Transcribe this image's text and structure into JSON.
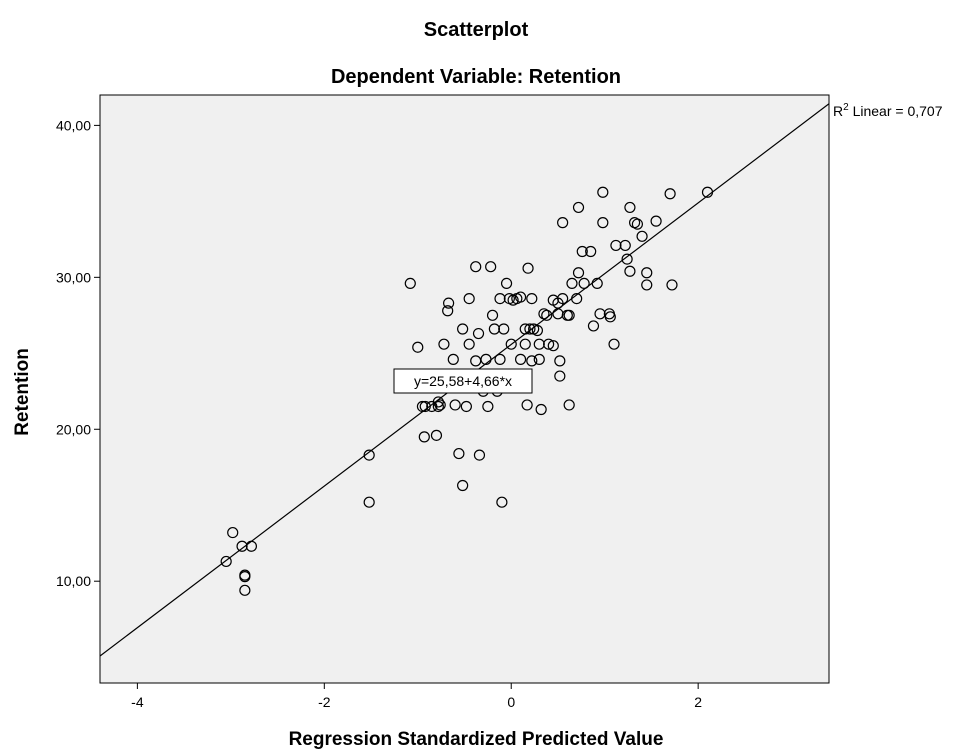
{
  "chart_data": {
    "type": "scatter",
    "title": "Scatterplot",
    "subtitle": "Dependent Variable: Retention",
    "xlabel": "Regression Standardized Predicted Value",
    "ylabel": "Retention",
    "xlim": [
      -4.4,
      3.4
    ],
    "ylim": [
      3.3,
      42.0
    ],
    "x_ticks": [
      -4,
      -2,
      0,
      2
    ],
    "x_tick_labels": [
      "-4",
      "-2",
      "0",
      "2"
    ],
    "y_ticks": [
      10,
      20,
      30,
      40
    ],
    "y_tick_labels": [
      "10,00",
      "20,00",
      "30,00",
      "40,00"
    ],
    "grid": false,
    "plot_background": "#f0f0f0",
    "marker_color": "#000000",
    "fit_line": {
      "intercept": 25.58,
      "slope": 4.66,
      "color": "#000000"
    },
    "equation_label": "y=25,58+4,66*x",
    "r2_label_prefix": "R",
    "r2_label_sup": "2",
    "r2_label_suffix": " Linear = 0,707",
    "points": [
      [
        -3.05,
        11.3
      ],
      [
        -2.98,
        13.2
      ],
      [
        -2.88,
        12.3
      ],
      [
        -2.78,
        12.3
      ],
      [
        -2.85,
        10.3
      ],
      [
        -2.85,
        10.4
      ],
      [
        -2.85,
        9.4
      ],
      [
        -1.52,
        18.3
      ],
      [
        -1.52,
        15.2
      ],
      [
        -1.08,
        29.6
      ],
      [
        -1.0,
        25.4
      ],
      [
        -0.95,
        21.5
      ],
      [
        -0.92,
        21.5
      ],
      [
        -0.93,
        19.5
      ],
      [
        -0.85,
        21.5
      ],
      [
        -0.78,
        21.5
      ],
      [
        -0.78,
        21.8
      ],
      [
        -0.76,
        21.6
      ],
      [
        -0.8,
        19.6
      ],
      [
        -0.72,
        25.6
      ],
      [
        -0.68,
        27.8
      ],
      [
        -0.67,
        28.3
      ],
      [
        -0.62,
        24.6
      ],
      [
        -0.6,
        21.6
      ],
      [
        -0.56,
        18.4
      ],
      [
        -0.52,
        16.3
      ],
      [
        -0.52,
        26.6
      ],
      [
        -0.48,
        21.5
      ],
      [
        -0.45,
        28.6
      ],
      [
        -0.45,
        25.6
      ],
      [
        -0.42,
        22.9
      ],
      [
        -0.38,
        30.7
      ],
      [
        -0.38,
        24.5
      ],
      [
        -0.35,
        26.3
      ],
      [
        -0.34,
        18.3
      ],
      [
        -0.3,
        22.5
      ],
      [
        -0.27,
        24.6
      ],
      [
        -0.25,
        21.5
      ],
      [
        -0.22,
        30.7
      ],
      [
        -0.2,
        27.5
      ],
      [
        -0.18,
        26.6
      ],
      [
        -0.15,
        22.5
      ],
      [
        -0.12,
        28.6
      ],
      [
        -0.12,
        24.6
      ],
      [
        -0.1,
        15.2
      ],
      [
        -0.08,
        26.6
      ],
      [
        -0.05,
        29.6
      ],
      [
        -0.02,
        28.6
      ],
      [
        0.0,
        25.6
      ],
      [
        0.02,
        28.5
      ],
      [
        0.06,
        28.6
      ],
      [
        0.1,
        28.7
      ],
      [
        0.1,
        24.6
      ],
      [
        0.15,
        26.6
      ],
      [
        0.15,
        25.6
      ],
      [
        0.17,
        21.6
      ],
      [
        0.18,
        30.6
      ],
      [
        0.2,
        26.6
      ],
      [
        0.22,
        28.6
      ],
      [
        0.22,
        24.5
      ],
      [
        0.24,
        26.6
      ],
      [
        0.28,
        26.5
      ],
      [
        0.3,
        24.6
      ],
      [
        0.3,
        25.6
      ],
      [
        0.32,
        21.3
      ],
      [
        0.35,
        27.6
      ],
      [
        0.38,
        27.5
      ],
      [
        0.4,
        25.6
      ],
      [
        0.45,
        28.5
      ],
      [
        0.45,
        25.5
      ],
      [
        0.5,
        27.6
      ],
      [
        0.5,
        28.3
      ],
      [
        0.52,
        24.5
      ],
      [
        0.52,
        23.5
      ],
      [
        0.55,
        33.6
      ],
      [
        0.55,
        28.6
      ],
      [
        0.6,
        27.5
      ],
      [
        0.62,
        27.5
      ],
      [
        0.62,
        21.6
      ],
      [
        0.65,
        29.6
      ],
      [
        0.7,
        28.6
      ],
      [
        0.72,
        30.3
      ],
      [
        0.72,
        34.6
      ],
      [
        0.76,
        31.7
      ],
      [
        0.78,
        29.6
      ],
      [
        0.85,
        31.7
      ],
      [
        0.88,
        26.8
      ],
      [
        0.92,
        29.6
      ],
      [
        0.95,
        27.6
      ],
      [
        0.98,
        33.6
      ],
      [
        0.98,
        35.6
      ],
      [
        1.05,
        27.6
      ],
      [
        1.06,
        27.4
      ],
      [
        1.1,
        25.6
      ],
      [
        1.12,
        32.1
      ],
      [
        1.22,
        32.1
      ],
      [
        1.24,
        31.2
      ],
      [
        1.27,
        30.4
      ],
      [
        1.27,
        34.6
      ],
      [
        1.32,
        33.6
      ],
      [
        1.35,
        33.5
      ],
      [
        1.4,
        32.7
      ],
      [
        1.45,
        30.3
      ],
      [
        1.45,
        29.5
      ],
      [
        1.55,
        33.7
      ],
      [
        1.7,
        35.5
      ],
      [
        1.72,
        29.5
      ],
      [
        2.1,
        35.6
      ]
    ]
  }
}
